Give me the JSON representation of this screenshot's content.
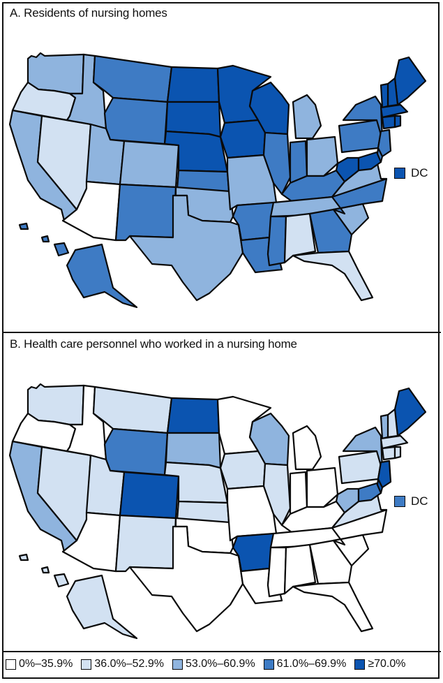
{
  "colors": {
    "c0": "#ffffff",
    "c1": "#d2e1f2",
    "c2": "#8fb4de",
    "c3": "#3e7bc4",
    "c4": "#0b54b0"
  },
  "legend": [
    {
      "label": "0%–35.9%",
      "color": "#ffffff"
    },
    {
      "label": "36.0%–52.9%",
      "color": "#d2e1f2"
    },
    {
      "label": "53.0%–60.9%",
      "color": "#8fb4de"
    },
    {
      "label": "61.0%–69.9%",
      "color": "#3e7bc4"
    },
    {
      "label": "≥70.0%",
      "color": "#0b54b0"
    }
  ],
  "panels": [
    {
      "title": "A. Residents of nursing homes",
      "dc_label": "DC",
      "dc_class": 4,
      "states": {
        "WA": 2,
        "OR": 1,
        "CA": 2,
        "NV": 1,
        "ID": 2,
        "MT": 3,
        "WY": 3,
        "UT": 2,
        "AZ": 0,
        "CO": 2,
        "NM": 3,
        "ND": 4,
        "SD": 4,
        "NE": 4,
        "KS": 3,
        "OK": 2,
        "TX": 2,
        "MN": 4,
        "IA": 4,
        "MO": 2,
        "AR": 3,
        "LA": 3,
        "WI": 4,
        "IL": 3,
        "MI": 2,
        "IN": 3,
        "OH": 2,
        "KY": 3,
        "TN": 2,
        "MS": 3,
        "AL": 1,
        "GA": 3,
        "FL": 1,
        "SC": 2,
        "NC": 3,
        "VA": 2,
        "WV": 4,
        "PA": 3,
        "NY": 3,
        "ME": 4,
        "NH": 4,
        "VT": 4,
        "MA": 4,
        "CT": 4,
        "RI": 4,
        "NJ": 3,
        "DE": 3,
        "MD": 4,
        "AK": 3,
        "HI": 3
      }
    },
    {
      "title": "B. Health care personnel who worked in a nursing home",
      "dc_label": "DC",
      "dc_class": 3,
      "states": {
        "WA": 1,
        "OR": 0,
        "CA": 2,
        "NV": 1,
        "ID": 0,
        "MT": 1,
        "WY": 3,
        "UT": 1,
        "AZ": 0,
        "CO": 4,
        "NM": 1,
        "ND": 4,
        "SD": 2,
        "NE": 1,
        "KS": 1,
        "OK": 0,
        "TX": 0,
        "MN": 0,
        "IA": 1,
        "MO": 0,
        "AR": 4,
        "LA": 0,
        "WI": 2,
        "IL": 1,
        "MI": 0,
        "IN": 0,
        "OH": 0,
        "KY": 0,
        "TN": 0,
        "MS": 0,
        "AL": 0,
        "GA": 0,
        "FL": 0,
        "SC": 0,
        "NC": 0,
        "VA": 1,
        "WV": 2,
        "PA": 1,
        "NY": 2,
        "ME": 4,
        "NH": 1,
        "VT": 2,
        "MA": 1,
        "CT": 1,
        "RI": 1,
        "NJ": 4,
        "DE": 4,
        "MD": 3,
        "AK": 1,
        "HI": 1
      }
    }
  ]
}
